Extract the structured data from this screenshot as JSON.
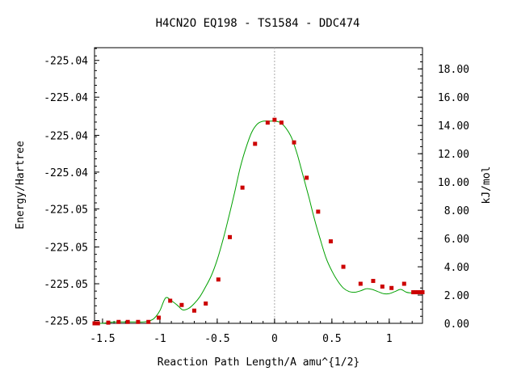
{
  "chart_data": {
    "type": "line",
    "title": "H4CN2O   EQ198 - TS1584 - DDC474",
    "xlabel": "Reaction Path Length/A amu^{1/2}",
    "ylabel_left": "Energy/Hartree",
    "ylabel_right": "kJ/mol",
    "xlim": [
      -1.57,
      1.29
    ],
    "ylim_right": [
      0,
      19.5
    ],
    "x_ticks": [
      -1.5,
      -1,
      -0.5,
      0,
      0.5,
      1
    ],
    "x_tick_labels": [
      "-1.5",
      "-1",
      "-0.5",
      "0",
      "0.5",
      "1"
    ],
    "y_left_ticks_kj": [
      0.2,
      2.8,
      5.4,
      8.1,
      10.7,
      13.3,
      16.0,
      18.6
    ],
    "y_left_tick_labels": [
      "-225.05",
      "-225.05",
      "-225.05",
      "-225.05",
      "-225.04",
      "-225.04",
      "-225.04",
      "-225.04"
    ],
    "y_right_ticks": [
      0,
      2,
      4,
      6,
      8,
      10,
      12,
      14,
      16,
      18
    ],
    "y_right_tick_labels": [
      "0.00",
      "2.00",
      "4.00",
      "6.00",
      "8.00",
      "10.00",
      "12.00",
      "14.00",
      "16.00",
      "18.00"
    ],
    "vline_x": 0,
    "colors": {
      "curve": "#00a000",
      "points": "#cc0000",
      "vline": "#aaaaaa",
      "axes": "#000000"
    },
    "series": [
      {
        "x": [
          -1.55,
          -1.5,
          -1.45,
          -1.4,
          -1.35,
          -1.3,
          -1.25,
          -1.2,
          -1.15,
          -1.1,
          -1.05,
          -1.0,
          -0.95,
          -0.9,
          -0.85,
          -0.8,
          -0.75,
          -0.7,
          -0.65,
          -0.6,
          -0.55,
          -0.5,
          -0.45,
          -0.4,
          -0.35,
          -0.3,
          -0.25,
          -0.2,
          -0.15,
          -0.1,
          -0.05,
          0.0,
          0.05,
          0.1,
          0.15,
          0.2,
          0.25,
          0.3,
          0.35,
          0.4,
          0.45,
          0.5,
          0.55,
          0.6,
          0.65,
          0.7,
          0.75,
          0.8,
          0.85,
          0.9,
          0.95,
          1.0,
          1.05,
          1.1,
          1.15,
          1.2,
          1.25,
          1.28
        ],
        "y": [
          0.0,
          0.0,
          0.05,
          0.1,
          0.1,
          0.1,
          0.1,
          0.1,
          0.1,
          0.15,
          0.35,
          0.9,
          1.8,
          1.6,
          1.3,
          0.95,
          1.05,
          1.4,
          1.9,
          2.6,
          3.4,
          4.5,
          5.9,
          7.5,
          9.2,
          11.0,
          12.4,
          13.5,
          14.1,
          14.3,
          14.3,
          14.3,
          14.2,
          13.8,
          13.1,
          11.9,
          10.4,
          8.9,
          7.3,
          5.9,
          4.6,
          3.7,
          3.0,
          2.5,
          2.25,
          2.2,
          2.3,
          2.45,
          2.4,
          2.25,
          2.1,
          2.1,
          2.25,
          2.4,
          2.2,
          2.15,
          2.15,
          2.15
        ]
      }
    ],
    "markers": {
      "x": [
        -1.57,
        -1.56,
        -1.55,
        -1.54,
        -1.45,
        -1.36,
        -1.28,
        -1.19,
        -1.1,
        -1.01,
        -0.91,
        -0.81,
        -0.7,
        -0.6,
        -0.49,
        -0.39,
        -0.28,
        -0.17,
        -0.06,
        0.0,
        0.06,
        0.17,
        0.28,
        0.38,
        0.49,
        0.6,
        0.75,
        0.86,
        0.94,
        1.02,
        1.13,
        1.21,
        1.23,
        1.25,
        1.27,
        1.29
      ],
      "y": [
        0.0,
        0.0,
        0.0,
        0.0,
        0.05,
        0.1,
        0.1,
        0.1,
        0.1,
        0.4,
        1.6,
        1.3,
        0.9,
        1.4,
        3.1,
        6.1,
        9.6,
        12.7,
        14.2,
        14.4,
        14.2,
        12.8,
        10.3,
        7.9,
        5.8,
        4.0,
        2.8,
        3.0,
        2.6,
        2.5,
        2.8,
        2.2,
        2.2,
        2.2,
        2.2,
        2.2
      ]
    }
  }
}
